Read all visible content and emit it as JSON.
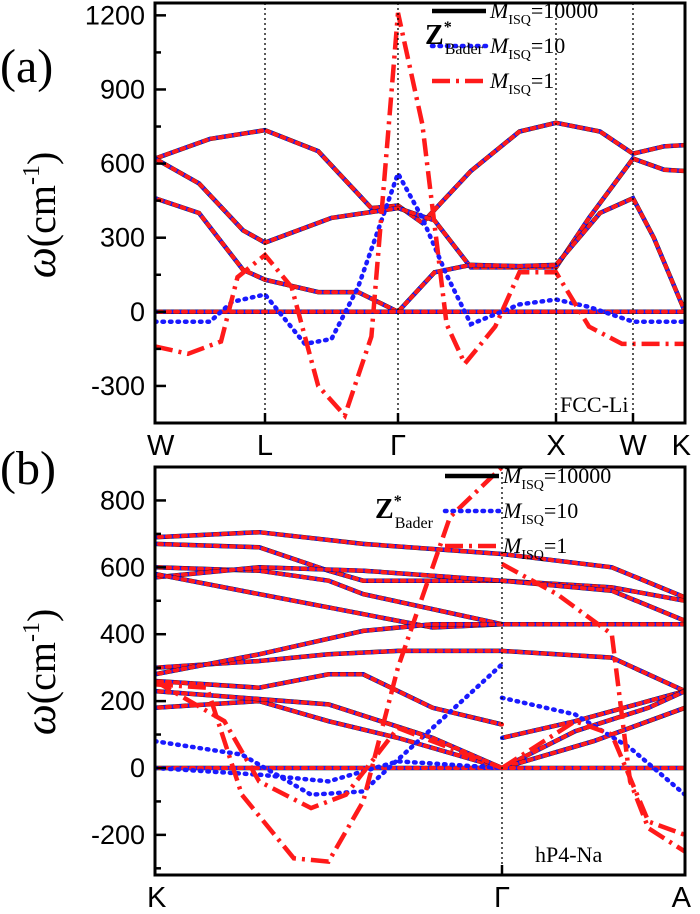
{
  "colors": {
    "black": "#000000",
    "blue": "#1a1aff",
    "red": "#ff1a1a"
  },
  "chart_data": [
    {
      "type": "line",
      "panel_label": "(a)",
      "annotation": "FCC-Li",
      "ylabel": {
        "symbol": "ω",
        "open": "(cm",
        "exp": "-1",
        "close": ")"
      },
      "ylim": [
        -450,
        1250
      ],
      "yticks": [
        -300,
        0,
        300,
        600,
        900,
        1200
      ],
      "ytick_labels": [
        "-300",
        "0",
        "300",
        "600",
        "900",
        "1200"
      ],
      "xlim": [
        0,
        5.6
      ],
      "xticks": [
        0,
        1,
        2,
        3.3,
        4,
        4.5
      ],
      "xtick_labels": [
        "W",
        "L",
        "Γ",
        "X",
        "W",
        "K"
      ],
      "vlines": [
        1,
        2,
        3.3,
        4
      ],
      "zlabel": {
        "base": "Z",
        "sup": "*",
        "sub": "Bader"
      },
      "legend": [
        {
          "prefix": "M",
          "sub": "ISQ",
          "suffix": "=10000",
          "style": "solid",
          "color": "#000000"
        },
        {
          "prefix": "M",
          "sub": "ISQ",
          "suffix": "=10",
          "style": "dotted",
          "color": "#1a1aff"
        },
        {
          "prefix": "M",
          "sub": "ISQ",
          "suffix": "=1",
          "style": "dashdot",
          "color": "#ff1a1a"
        }
      ],
      "series": [
        {
          "color": "#000000",
          "style": "base",
          "points": [
            [
              0,
              620
            ],
            [
              0.5,
              700
            ],
            [
              1,
              735
            ],
            [
              1.4,
              650
            ],
            [
              1.8,
              420
            ],
            [
              2,
              430
            ],
            [
              2.2,
              360
            ],
            [
              2.6,
              570
            ],
            [
              3,
              730
            ],
            [
              3.3,
              765
            ],
            [
              3.7,
              730
            ],
            [
              4,
              640
            ],
            [
              4.3,
              670
            ],
            [
              4.5,
              675
            ]
          ]
        },
        {
          "color": "#000000",
          "style": "base",
          "points": [
            [
              0,
              620
            ],
            [
              0.4,
              520
            ],
            [
              0.8,
              330
            ],
            [
              1,
              280
            ],
            [
              1.5,
              380
            ],
            [
              2,
              420
            ],
            [
              2.3,
              370
            ],
            [
              2.6,
              180
            ],
            [
              3,
              180
            ],
            [
              3.3,
              180
            ],
            [
              3.6,
              380
            ],
            [
              4,
              620
            ],
            [
              4.3,
              575
            ],
            [
              4.5,
              570
            ]
          ]
        },
        {
          "color": "#000000",
          "style": "base",
          "points": [
            [
              0,
              460
            ],
            [
              0.4,
              400
            ],
            [
              0.8,
              170
            ],
            [
              1,
              130
            ],
            [
              1.4,
              80
            ],
            [
              1.7,
              80
            ],
            [
              2,
              0
            ],
            [
              2.3,
              160
            ],
            [
              2.6,
              190
            ],
            [
              3,
              185
            ],
            [
              3.3,
              190
            ],
            [
              3.7,
              400
            ],
            [
              4,
              460
            ],
            [
              4.2,
              300
            ],
            [
              4.5,
              0
            ]
          ]
        },
        {
          "color": "#000000",
          "style": "base",
          "points": [
            [
              0,
              0
            ],
            [
              4.5,
              0
            ]
          ]
        },
        {
          "color": "#1a1aff",
          "style": "dotted",
          "points": [
            [
              0,
              -40
            ],
            [
              0.5,
              -40
            ],
            [
              0.7,
              40
            ],
            [
              1,
              70
            ],
            [
              1.3,
              -130
            ],
            [
              1.5,
              -110
            ],
            [
              1.7,
              100
            ],
            [
              2,
              560
            ],
            [
              2.2,
              380
            ],
            [
              2.4,
              150
            ],
            [
              2.6,
              -50
            ],
            [
              3,
              30
            ],
            [
              3.3,
              50
            ],
            [
              3.6,
              20
            ],
            [
              4,
              -40
            ],
            [
              4.5,
              -40
            ]
          ]
        },
        {
          "color": "#ff1a1a",
          "style": "dashdot",
          "points": [
            [
              0,
              -140
            ],
            [
              0.3,
              -170
            ],
            [
              0.6,
              -120
            ],
            [
              0.75,
              140
            ],
            [
              1,
              230
            ],
            [
              1.2,
              100
            ],
            [
              1.4,
              -300
            ],
            [
              1.6,
              -420
            ],
            [
              1.8,
              -100
            ],
            [
              2,
              1210
            ],
            [
              2.2,
              760
            ],
            [
              2.4,
              -50
            ],
            [
              2.55,
              -210
            ],
            [
              2.8,
              -60
            ],
            [
              3,
              160
            ],
            [
              3.3,
              160
            ],
            [
              3.6,
              -60
            ],
            [
              3.9,
              -130
            ],
            [
              4.2,
              -130
            ],
            [
              4.5,
              -130
            ]
          ]
        }
      ]
    },
    {
      "type": "line",
      "panel_label": "(b)",
      "annotation": "hP4-Na",
      "ylabel": {
        "symbol": "ω",
        "open": "(cm",
        "exp": "-1",
        "close": ")"
      },
      "ylim": [
        -320,
        900
      ],
      "yticks": [
        -200,
        0,
        200,
        400,
        600,
        800
      ],
      "ytick_labels": [
        "-200",
        "0",
        "200",
        "400",
        "600",
        "800"
      ],
      "xlim": [
        0,
        1.5
      ],
      "xticks": [
        0,
        1,
        1.5
      ],
      "xtick_labels": [
        "K",
        "Γ",
        "A"
      ],
      "vlines": [
        1
      ],
      "zlabel": {
        "base": "Z",
        "sup": "*",
        "sub": "Bader"
      },
      "legend": [
        {
          "prefix": "M",
          "sub": "ISQ",
          "suffix": "=10000",
          "style": "solid",
          "color": "#000000"
        },
        {
          "prefix": "M",
          "sub": "ISQ",
          "suffix": "=10",
          "style": "dotted",
          "color": "#1a1aff"
        },
        {
          "prefix": "M",
          "sub": "ISQ",
          "suffix": "=1",
          "style": "dashdot",
          "color": "#ff1a1a"
        }
      ],
      "series": [
        {
          "color": "#000000",
          "style": "base",
          "points": [
            [
              0,
              690
            ],
            [
              0.3,
              705
            ],
            [
              0.6,
              670
            ],
            [
              1,
              640
            ],
            [
              1.3,
              600
            ],
            [
              1.5,
              510
            ]
          ]
        },
        {
          "color": "#000000",
          "style": "base",
          "points": [
            [
              0,
              670
            ],
            [
              0.3,
              660
            ],
            [
              0.5,
              590
            ],
            [
              0.6,
              560
            ],
            [
              1,
              560
            ],
            [
              1.3,
              540
            ],
            [
              1.5,
              500
            ]
          ]
        },
        {
          "color": "#000000",
          "style": "base",
          "points": [
            [
              0,
              600
            ],
            [
              0.3,
              590
            ],
            [
              0.5,
              560
            ],
            [
              0.6,
              520
            ],
            [
              1,
              430
            ],
            [
              1.5,
              430
            ]
          ]
        },
        {
          "color": "#000000",
          "style": "base",
          "points": [
            [
              0,
              570
            ],
            [
              0.3,
              600
            ],
            [
              0.6,
              590
            ],
            [
              1,
              560
            ],
            [
              1.3,
              530
            ],
            [
              1.5,
              440
            ]
          ]
        },
        {
          "color": "#000000",
          "style": "base",
          "points": [
            [
              0,
              580
            ],
            [
              0.3,
              520
            ],
            [
              0.6,
              460
            ],
            [
              0.8,
              420
            ],
            [
              1,
              430
            ],
            [
              1.5,
              430
            ]
          ]
        },
        {
          "color": "#000000",
          "style": "base",
          "points": [
            [
              0,
              300
            ],
            [
              0.3,
              320
            ],
            [
              0.5,
              340
            ],
            [
              0.7,
              350
            ],
            [
              1,
              350
            ],
            [
              1.3,
              330
            ],
            [
              1.5,
              230
            ]
          ]
        },
        {
          "color": "#000000",
          "style": "base",
          "points": [
            [
              0,
              280
            ],
            [
              0.3,
              340
            ],
            [
              0.6,
              410
            ],
            [
              0.8,
              430
            ],
            [
              1,
              430
            ]
          ]
        },
        {
          "color": "#000000",
          "style": "base",
          "points": [
            [
              0,
              260
            ],
            [
              0.3,
              240
            ],
            [
              0.5,
              280
            ],
            [
              0.6,
              280
            ],
            [
              0.8,
              180
            ],
            [
              1,
              130
            ]
          ]
        },
        {
          "color": "#000000",
          "style": "base",
          "points": [
            [
              1,
              90
            ],
            [
              1.2,
              140
            ],
            [
              1.4,
              200
            ],
            [
              1.5,
              230
            ]
          ]
        },
        {
          "color": "#000000",
          "style": "base",
          "points": [
            [
              0,
              180
            ],
            [
              0.3,
              200
            ],
            [
              0.5,
              140
            ],
            [
              0.7,
              90
            ],
            [
              1,
              0
            ]
          ]
        },
        {
          "color": "#000000",
          "style": "base",
          "points": [
            [
              0,
              230
            ],
            [
              0.5,
              190
            ],
            [
              0.8,
              90
            ],
            [
              1,
              0
            ]
          ]
        },
        {
          "color": "#000000",
          "style": "base",
          "points": [
            [
              1,
              0
            ],
            [
              1.2,
              110
            ],
            [
              1.4,
              180
            ],
            [
              1.5,
              230
            ]
          ]
        },
        {
          "color": "#000000",
          "style": "base",
          "points": [
            [
              1,
              0
            ],
            [
              1.25,
              80
            ],
            [
              1.5,
              180
            ]
          ]
        },
        {
          "color": "#000000",
          "style": "base",
          "points": [
            [
              0,
              0
            ],
            [
              1.5,
              0
            ]
          ]
        },
        {
          "color": "#1a1aff",
          "style": "dotted",
          "points": [
            [
              0,
              80
            ],
            [
              0.25,
              40
            ],
            [
              0.45,
              -80
            ],
            [
              0.6,
              -70
            ],
            [
              0.8,
              120
            ],
            [
              1,
              310
            ]
          ]
        },
        {
          "color": "#1a1aff",
          "style": "dotted",
          "points": [
            [
              0,
              0
            ],
            [
              0.3,
              -20
            ],
            [
              0.5,
              -40
            ],
            [
              0.7,
              20
            ],
            [
              1,
              0
            ]
          ]
        },
        {
          "color": "#1a1aff",
          "style": "dotted",
          "points": [
            [
              1,
              210
            ],
            [
              1.2,
              160
            ],
            [
              1.35,
              60
            ],
            [
              1.5,
              -80
            ]
          ]
        },
        {
          "color": "#ff1a1a",
          "style": "dashdot",
          "points": [
            [
              0,
              250
            ],
            [
              0.15,
              240
            ],
            [
              0.25,
              -80
            ],
            [
              0.4,
              -270
            ],
            [
              0.5,
              -280
            ],
            [
              0.6,
              -100
            ],
            [
              0.7,
              300
            ],
            [
              0.85,
              750
            ],
            [
              1,
              900
            ]
          ]
        },
        {
          "color": "#ff1a1a",
          "style": "dashdot",
          "points": [
            [
              0,
              260
            ],
            [
              0.2,
              140
            ],
            [
              0.3,
              -40
            ],
            [
              0.45,
              -120
            ],
            [
              0.55,
              -80
            ],
            [
              0.7,
              120
            ],
            [
              1,
              0
            ]
          ]
        },
        {
          "color": "#ff1a1a",
          "style": "dashdot",
          "points": [
            [
              1,
              610
            ],
            [
              1.15,
              520
            ],
            [
              1.3,
              400
            ],
            [
              1.35,
              -40
            ],
            [
              1.4,
              -180
            ],
            [
              1.5,
              -250
            ]
          ]
        },
        {
          "color": "#ff1a1a",
          "style": "dashdot",
          "points": [
            [
              1,
              0
            ],
            [
              1.2,
              140
            ],
            [
              1.3,
              100
            ],
            [
              1.4,
              -160
            ],
            [
              1.5,
              -200
            ]
          ]
        }
      ]
    }
  ]
}
